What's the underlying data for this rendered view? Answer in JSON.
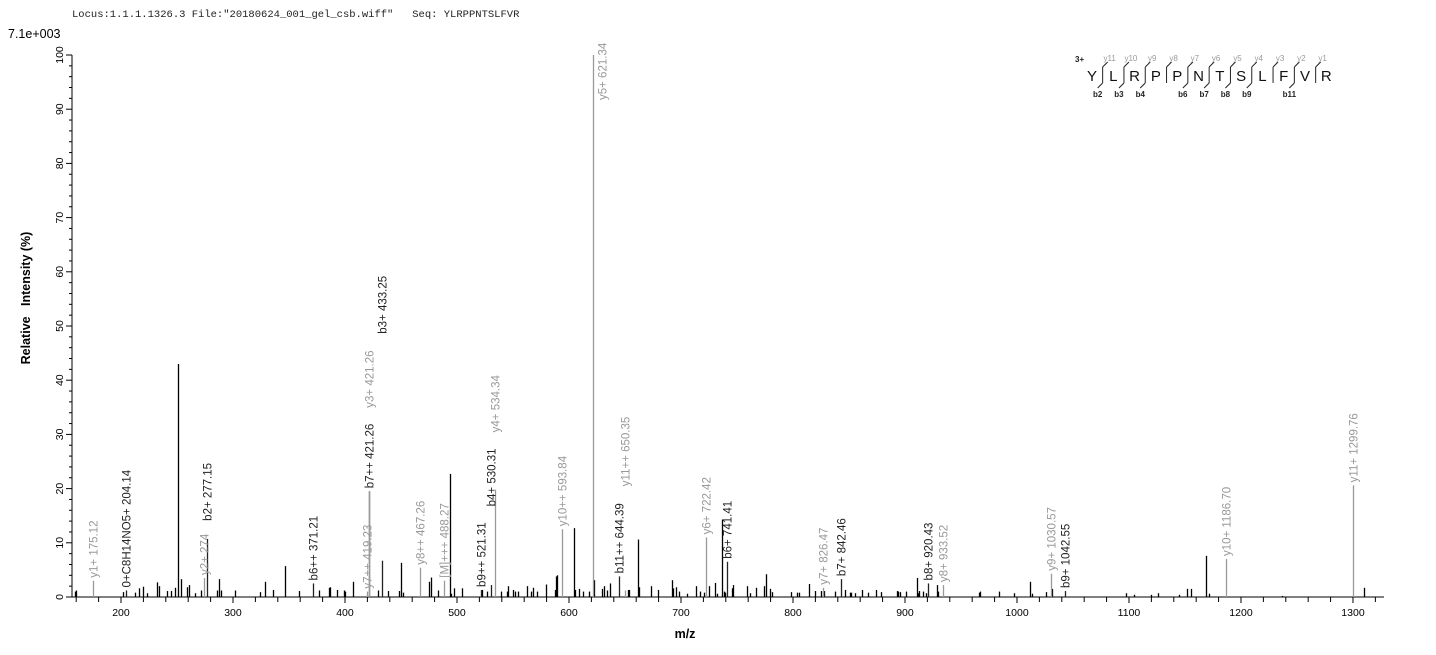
{
  "header": {
    "title": "Locus:1.1.1.1326.3 File:\"20180624_001_gel_csb.wiff\"   Seq: YLRPPNTSLFVR",
    "ymax": "7.1e+003"
  },
  "colors": {
    "y_ion": "#999999",
    "b_ion": "#222222",
    "unannotated": "#000000"
  },
  "chart_data": {
    "type": "bar",
    "xlabel": "m/z",
    "ylabel": "Relative   Intensity (%)",
    "xlim": [
      156.25,
      1327.7
    ],
    "ylim": [
      0,
      100
    ],
    "x_ticks": [
      200,
      300,
      400,
      500,
      600,
      700,
      800,
      900,
      1000,
      1100,
      1200,
      1300
    ],
    "y_ticks": [
      0,
      10,
      20,
      30,
      40,
      50,
      60,
      70,
      80,
      90,
      100
    ],
    "grid": false,
    "annotated_peaks": [
      {
        "mz": 175.12,
        "intensity": 3.0,
        "label": "y1+ 175.12",
        "ion": "y"
      },
      {
        "mz": 204.14,
        "intensity": 1.2,
        "label": "0+C8H14NO5+ 204.14",
        "ion": "b"
      },
      {
        "mz": 274.2,
        "intensity": 3.5,
        "label": "y2+ 274",
        "ion": "y"
      },
      {
        "mz": 277.15,
        "intensity": 10.7,
        "label": "b2+ 277.15",
        "ion": "b"
      },
      {
        "mz": 371.21,
        "intensity": 2.5,
        "label": "b6++ 371.21",
        "ion": "b"
      },
      {
        "mz": 419.23,
        "intensity": 1.0,
        "label": "y7++ 419.23",
        "ion": "y"
      },
      {
        "mz": 421.26,
        "intensity": 19.5,
        "label": "b7++ 421.26",
        "ion": "b"
      },
      {
        "mz": 421.26,
        "intensity": 19.5,
        "label": "y3+ 421.26",
        "ion": "y"
      },
      {
        "mz": 433.25,
        "intensity": 6.7,
        "label": "b3+ 433.25",
        "ion": "b"
      },
      {
        "mz": 467.26,
        "intensity": 5.4,
        "label": "y8++ 467.26",
        "ion": "y"
      },
      {
        "mz": 488.27,
        "intensity": 3.0,
        "label": "[M]+++ 488.27",
        "ion": "y"
      },
      {
        "mz": 521.31,
        "intensity": 1.3,
        "label": "b9++ 521.31",
        "ion": "b"
      },
      {
        "mz": 530.31,
        "intensity": 2.2,
        "label": "b4+ 530.31",
        "ion": "b"
      },
      {
        "mz": 534.34,
        "intensity": 19.8,
        "label": "y4+ 534.34",
        "ion": "y"
      },
      {
        "mz": 593.84,
        "intensity": 12.5,
        "label": "y10++ 593.84",
        "ion": "y"
      },
      {
        "mz": 621.34,
        "intensity": 100,
        "label": "y5+ 621.34",
        "ion": "y"
      },
      {
        "mz": 644.39,
        "intensity": 3.8,
        "label": "b11++ 644.39",
        "ion": "b"
      },
      {
        "mz": 650.35,
        "intensity": 1.2,
        "label": "y11++ 650.35",
        "ion": "y"
      },
      {
        "mz": 722.42,
        "intensity": 11.0,
        "label": "y6+ 722.42",
        "ion": "y"
      },
      {
        "mz": 741.41,
        "intensity": 6.5,
        "label": "b6+ 741.41",
        "ion": "b"
      },
      {
        "mz": 826.47,
        "intensity": 1.7,
        "label": "y7+ 826.47",
        "ion": "y"
      },
      {
        "mz": 842.46,
        "intensity": 3.3,
        "label": "b7+ 842.46",
        "ion": "b"
      },
      {
        "mz": 920.43,
        "intensity": 2.5,
        "label": "b8+ 920.43",
        "ion": "b"
      },
      {
        "mz": 933.52,
        "intensity": 2.2,
        "label": "y8+ 933.52",
        "ion": "y"
      },
      {
        "mz": 1030.57,
        "intensity": 4.3,
        "label": "y9+ 1030.57",
        "ion": "y"
      },
      {
        "mz": 1042.55,
        "intensity": 1.1,
        "label": "b9+ 1042.55",
        "ion": "b"
      },
      {
        "mz": 1186.7,
        "intensity": 7.0,
        "label": "y10+ 1186.70",
        "ion": "y"
      },
      {
        "mz": 1299.76,
        "intensity": 20.6,
        "label": "y11+ 1299.76",
        "ion": "y"
      }
    ],
    "unannotated_peaks": [
      [
        158.9,
        1.0
      ],
      [
        160.2,
        1.2
      ],
      [
        202,
        0.9
      ],
      [
        212.5,
        0.8
      ],
      [
        216.4,
        1.6
      ],
      [
        220,
        1.9
      ],
      [
        223.5,
        0.7
      ],
      [
        232.4,
        2.7
      ],
      [
        234.2,
        2.0
      ],
      [
        241.3,
        1.1
      ],
      [
        244.3,
        1.1
      ],
      [
        248.5,
        1.7
      ],
      [
        250.9,
        43.0
      ],
      [
        253.3,
        3.3
      ],
      [
        258.6,
        1.8
      ],
      [
        260.4,
        2.2
      ],
      [
        266.4,
        0.7
      ],
      [
        271.1,
        1.2
      ],
      [
        285.4,
        1.2
      ],
      [
        287.2,
        3.3
      ],
      [
        289.6,
        1.2
      ],
      [
        301.5,
        1.2
      ],
      [
        324.1,
        0.9
      ],
      [
        328.9,
        2.8
      ],
      [
        335.4,
        1.3
      ],
      [
        346.1,
        5.7
      ],
      [
        358.6,
        1.1
      ],
      [
        376.4,
        1.2
      ],
      [
        386.0,
        1.7
      ],
      [
        386.8,
        1.8
      ],
      [
        393.1,
        1.3
      ],
      [
        399.4,
        1.2
      ],
      [
        400.3,
        1.0
      ],
      [
        407.4,
        2.8
      ],
      [
        429.7,
        1.2
      ],
      [
        438.1,
        1.1
      ],
      [
        448.5,
        1.1
      ],
      [
        450.3,
        6.3
      ],
      [
        452.0,
        0.8
      ],
      [
        475.3,
        2.8
      ],
      [
        476.5,
        3.6
      ],
      [
        483.3,
        1.2
      ],
      [
        493.4,
        22.7
      ],
      [
        494.4,
        0.6
      ],
      [
        497.6,
        1.6
      ],
      [
        504.2,
        1.6
      ],
      [
        522.3,
        1.3
      ],
      [
        526.5,
        1.0
      ],
      [
        539.0,
        1.0
      ],
      [
        544.4,
        1.0
      ],
      [
        545.8,
        2.0
      ],
      [
        549.7,
        1.3
      ],
      [
        551.8,
        1.0
      ],
      [
        554.2,
        1.0
      ],
      [
        562.2,
        2.0
      ],
      [
        565.8,
        1.0
      ],
      [
        567.6,
        1.7
      ],
      [
        571.7,
        1.0
      ],
      [
        579.2,
        2.3
      ],
      [
        587.2,
        1.3
      ],
      [
        588.1,
        3.8
      ],
      [
        589.6,
        4.0
      ],
      [
        604.2,
        12.7
      ],
      [
        605.0,
        1.3
      ],
      [
        609.2,
        1.5
      ],
      [
        612.2,
        1.0
      ],
      [
        617.5,
        1.0
      ],
      [
        622.6,
        3.1
      ],
      [
        629.2,
        1.5
      ],
      [
        631.5,
        2.0
      ],
      [
        633.6,
        1.2
      ],
      [
        636.3,
        2.5
      ],
      [
        652.4,
        1.3
      ],
      [
        653.6,
        1.3
      ],
      [
        661.3,
        10.6
      ],
      [
        662.8,
        1.8
      ],
      [
        673.5,
        2.0
      ],
      [
        679.8,
        1.3
      ],
      [
        691.7,
        3.1
      ],
      [
        693.1,
        1.6
      ],
      [
        695.8,
        1.8
      ],
      [
        698.5,
        1.0
      ],
      [
        705.0,
        0.6
      ],
      [
        713.7,
        2.0
      ],
      [
        717.2,
        1.0
      ],
      [
        720.8,
        0.8
      ],
      [
        725.3,
        2.0
      ],
      [
        730.7,
        2.6
      ],
      [
        732.5,
        0.6
      ],
      [
        737.0,
        14.3
      ],
      [
        738.0,
        1.0
      ],
      [
        739.6,
        0.8
      ],
      [
        745.2,
        1.6
      ],
      [
        746.1,
        2.2
      ],
      [
        759.2,
        2.0
      ],
      [
        761.6,
        0.7
      ],
      [
        767.0,
        1.7
      ],
      [
        774.4,
        2.0
      ],
      [
        776.2,
        4.2
      ],
      [
        779.8,
        1.5
      ],
      [
        781.5,
        0.9
      ],
      [
        798.5,
        0.9
      ],
      [
        803.8,
        0.8
      ],
      [
        805.6,
        0.8
      ],
      [
        814.6,
        2.4
      ],
      [
        819.9,
        1.1
      ],
      [
        825.3,
        1.1
      ],
      [
        828.0,
        1.1
      ],
      [
        837.8,
        1.0
      ],
      [
        846.6,
        1.3
      ],
      [
        851.0,
        0.8
      ],
      [
        851.9,
        0.8
      ],
      [
        855.5,
        0.7
      ],
      [
        861.3,
        1.3
      ],
      [
        866.7,
        0.8
      ],
      [
        873.9,
        1.3
      ],
      [
        878.4,
        0.9
      ],
      [
        892.7,
        1.1
      ],
      [
        893.6,
        1.0
      ],
      [
        895.7,
        0.9
      ],
      [
        900.7,
        1.0
      ],
      [
        910.5,
        3.5
      ],
      [
        911.3,
        0.7
      ],
      [
        912.2,
        1.1
      ],
      [
        915.8,
        1.0
      ],
      [
        918.4,
        0.7
      ],
      [
        928.3,
        2.2
      ],
      [
        929.2,
        1.0
      ],
      [
        966.1,
        0.8
      ],
      [
        967.0,
        1.0
      ],
      [
        983.7,
        1.0
      ],
      [
        997.1,
        0.7
      ],
      [
        1011.7,
        2.8
      ],
      [
        1013.2,
        0.6
      ],
      [
        1025.7,
        0.9
      ],
      [
        1031.6,
        1.5
      ],
      [
        1097.3,
        0.7
      ],
      [
        1104.7,
        0.4
      ],
      [
        1119.4,
        0.4
      ],
      [
        1126.2,
        0.7
      ],
      [
        1144.4,
        0.4
      ],
      [
        1152.1,
        1.5
      ],
      [
        1155.6,
        1.5
      ],
      [
        1169.0,
        7.6
      ],
      [
        1171.7,
        0.6
      ],
      [
        1236.9,
        0.2
      ],
      [
        1310.0,
        1.7
      ]
    ]
  },
  "legend": {
    "charge": "3+",
    "residues": [
      "Y",
      "L",
      "R",
      "P",
      "P",
      "N",
      "T",
      "S",
      "L",
      "F",
      "V",
      "R"
    ],
    "y_ions": [
      "y11",
      "y10",
      "y9",
      "y8",
      "y7",
      "y6",
      "y5",
      "y4",
      "y3",
      "y2",
      "y1"
    ],
    "b_ions": [
      "b2",
      "b3",
      "b4",
      "",
      "b6",
      "b7",
      "b8",
      "b9",
      "",
      "b11"
    ],
    "b_ion_at_cleavage": [
      null,
      "b2",
      "b3",
      "b4",
      null,
      "b6",
      "b7",
      "b8",
      "b9",
      null,
      "b11"
    ]
  }
}
